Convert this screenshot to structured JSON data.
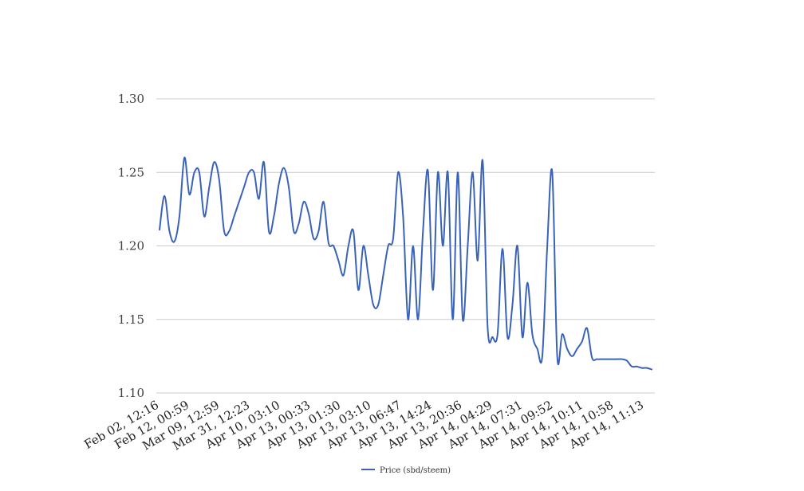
{
  "chart_data": {
    "type": "line",
    "title": "",
    "xlabel": "",
    "ylabel": "",
    "ylim": [
      1.1,
      1.3
    ],
    "y_ticks": [
      "1.10",
      "1.15",
      "1.20",
      "1.25",
      "1.30"
    ],
    "x_tick_labels": [
      "Feb 02, 12:16",
      "Feb 12, 00:59",
      "Mar 09, 12:59",
      "Mar 31, 12:23",
      "Apr 10, 03:10",
      "Apr 13, 00:33",
      "Apr 13, 01:30",
      "Apr 13, 03:10",
      "Apr 13, 06:47",
      "Apr 13, 14:24",
      "Apr 13, 20:36",
      "Apr 14, 04:29",
      "Apr 14, 07:31",
      "Apr 14, 09:52",
      "Apr 14, 10:11",
      "Apr 14, 10:58",
      "Apr 14, 11:13"
    ],
    "grid": true,
    "legend_position": "bottom",
    "color": "#3a63b8",
    "series": [
      {
        "name": "Price (sbd/steem)",
        "values": [
          1.211,
          1.234,
          1.21,
          1.203,
          1.22,
          1.26,
          1.235,
          1.25,
          1.25,
          1.22,
          1.24,
          1.257,
          1.245,
          1.21,
          1.21,
          1.22,
          1.23,
          1.24,
          1.25,
          1.25,
          1.232,
          1.257,
          1.21,
          1.22,
          1.242,
          1.253,
          1.24,
          1.21,
          1.215,
          1.23,
          1.222,
          1.205,
          1.21,
          1.23,
          1.202,
          1.2,
          1.19,
          1.18,
          1.2,
          1.21,
          1.17,
          1.2,
          1.18,
          1.16,
          1.16,
          1.18,
          1.2,
          1.205,
          1.25,
          1.22,
          1.15,
          1.2,
          1.15,
          1.21,
          1.251,
          1.17,
          1.25,
          1.2,
          1.25,
          1.15,
          1.25,
          1.15,
          1.2,
          1.25,
          1.19,
          1.258,
          1.145,
          1.138,
          1.14,
          1.198,
          1.138,
          1.16,
          1.2,
          1.138,
          1.175,
          1.14,
          1.13,
          1.125,
          1.2,
          1.25,
          1.125,
          1.14,
          1.13,
          1.125,
          1.13,
          1.135,
          1.144,
          1.124,
          1.123,
          1.123,
          1.123,
          1.123,
          1.123,
          1.123,
          1.122,
          1.118,
          1.118,
          1.117,
          1.117,
          1.116
        ]
      }
    ]
  }
}
